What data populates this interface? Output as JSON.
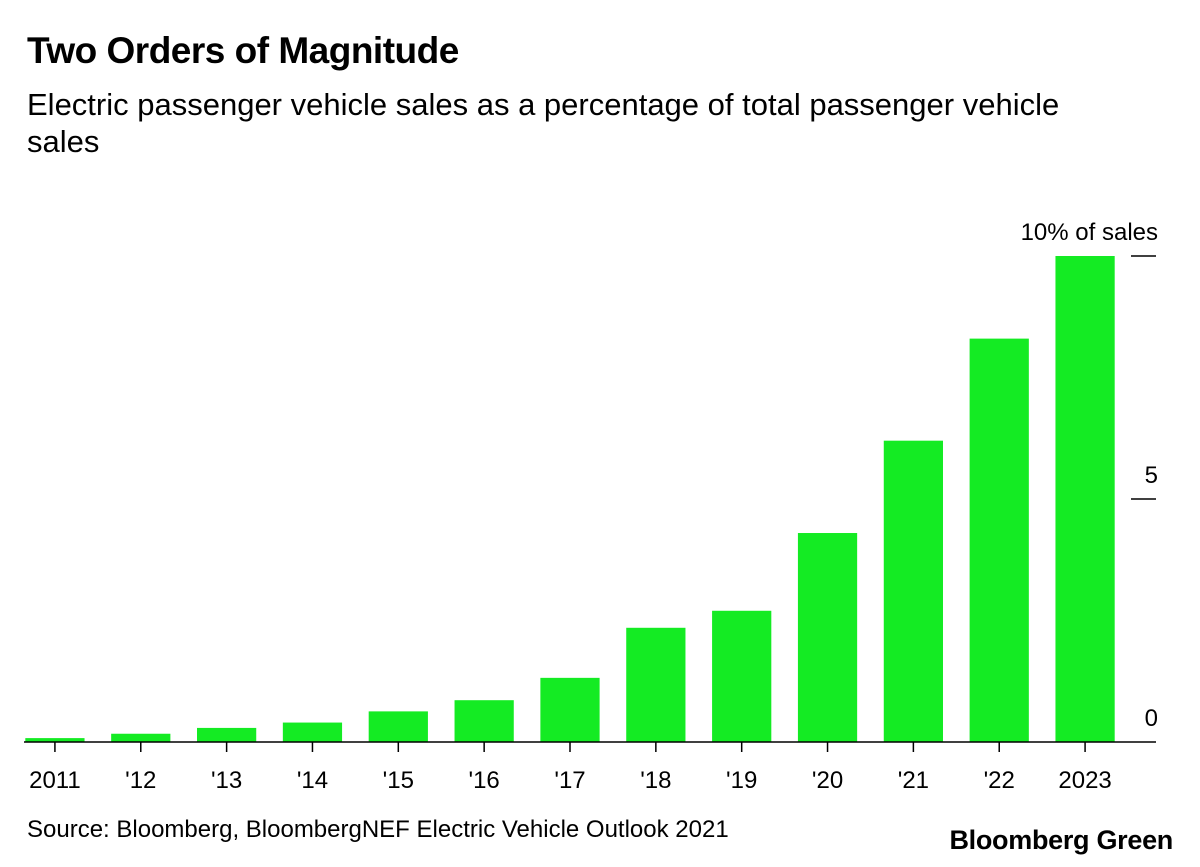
{
  "title": "Two Orders of Magnitude",
  "subtitle": "Electric passenger vehicle sales as a percentage of total passenger vehicle sales",
  "source": "Source: Bloomberg, BloombergNEF Electric Vehicle Outlook 2021",
  "brand": "Bloomberg Green",
  "colors": {
    "bar": "#14eb23",
    "text": "#000000",
    "axis": "#000000"
  },
  "chart_data": {
    "type": "bar",
    "title": "Two Orders of Magnitude",
    "subtitle": "Electric passenger vehicle sales as a percentage of total passenger vehicle sales",
    "xlabel": "",
    "ylabel": "",
    "categories": [
      "2011",
      "'12",
      "'13",
      "'14",
      "'15",
      "'16",
      "'17",
      "'18",
      "'19",
      "'20",
      "'21",
      "'22",
      "2023"
    ],
    "values": [
      0.08,
      0.17,
      0.29,
      0.4,
      0.63,
      0.86,
      1.32,
      2.35,
      2.7,
      4.3,
      6.2,
      8.3,
      10.0
    ],
    "ylim": [
      0,
      10
    ],
    "yticks": [
      {
        "value": 0,
        "label": "0"
      },
      {
        "value": 5,
        "label": "5"
      },
      {
        "value": 10,
        "label": "10% of sales"
      }
    ],
    "y_axis_side": "right",
    "grid": false,
    "legend": "none"
  }
}
